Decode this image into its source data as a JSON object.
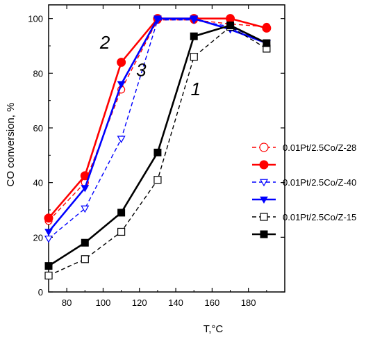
{
  "chart_data": {
    "type": "line",
    "xlabel": "T,°C",
    "ylabel": "CO conversion, %",
    "xlim": [
      70,
      200
    ],
    "ylim": [
      0,
      105
    ],
    "xticks": [
      80,
      100,
      120,
      140,
      160,
      180
    ],
    "yticks": [
      0,
      20,
      40,
      60,
      80,
      100
    ],
    "legend_position": "center-right",
    "series": [
      {
        "name": "0.01Pt/2.5Co/Z-28",
        "color": "#ff0000",
        "dash": "dashed",
        "marker": "circle-open",
        "x": [
          70,
          90,
          110,
          130,
          150,
          170,
          190
        ],
        "y": [
          26,
          40,
          74,
          99.5,
          99.5,
          98,
          97
        ]
      },
      {
        "name": "",
        "color": "#ff0000",
        "dash": "solid",
        "marker": "circle-filled",
        "x": [
          70,
          90,
          110,
          130,
          150,
          170,
          190
        ],
        "y": [
          27,
          42.5,
          84,
          100,
          100,
          100,
          96.5
        ]
      },
      {
        "name": "0.01Pt/2.5Co/Z-40",
        "color": "#0000ff",
        "dash": "dashed",
        "marker": "triangle-down-open",
        "x": [
          70,
          90,
          110,
          130,
          150,
          170,
          190
        ],
        "y": [
          19.5,
          30.5,
          56,
          99.5,
          99.5,
          97,
          91
        ]
      },
      {
        "name": "",
        "color": "#0000ff",
        "dash": "solid",
        "marker": "triangle-down-filled",
        "x": [
          70,
          90,
          110,
          130,
          150,
          170,
          190
        ],
        "y": [
          22,
          38,
          76,
          100,
          100,
          96,
          91
        ]
      },
      {
        "name": "0.01Pt/2.5Co/Z-15",
        "color": "#000000",
        "dash": "dashed",
        "marker": "square-open",
        "x": [
          70,
          90,
          110,
          130,
          150,
          170,
          190
        ],
        "y": [
          6,
          12,
          22,
          41,
          86,
          97,
          89
        ]
      },
      {
        "name": "",
        "color": "#000000",
        "dash": "solid",
        "marker": "square-filled",
        "x": [
          70,
          90,
          110,
          130,
          150,
          170,
          190
        ],
        "y": [
          9.5,
          18,
          29,
          51,
          93.5,
          97.5,
          91
        ]
      }
    ],
    "annotations": [
      {
        "text": "1",
        "x": 151,
        "y": 72
      },
      {
        "text": "2",
        "x": 101,
        "y": 89
      },
      {
        "text": "3",
        "x": 121,
        "y": 79
      }
    ]
  }
}
